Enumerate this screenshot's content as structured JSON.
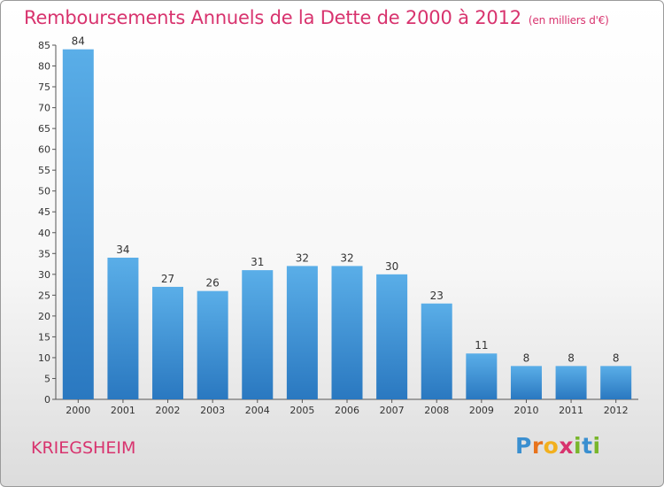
{
  "chart_data": {
    "type": "bar",
    "title": "Remboursements Annuels de la Dette de 2000 à 2012",
    "subtitle": "(en milliers d'€)",
    "categories": [
      "2000",
      "2001",
      "2002",
      "2003",
      "2004",
      "2005",
      "2006",
      "2007",
      "2008",
      "2009",
      "2010",
      "2011",
      "2012"
    ],
    "values": [
      84,
      34,
      27,
      26,
      31,
      32,
      32,
      30,
      23,
      11,
      8,
      8,
      8
    ],
    "ylim": [
      0,
      85
    ],
    "yticks": [
      0,
      5,
      10,
      15,
      20,
      25,
      30,
      35,
      40,
      45,
      50,
      55,
      60,
      65,
      70,
      75,
      80,
      85
    ],
    "xlabel": "",
    "ylabel": "",
    "grid": false,
    "bar_color_top": "#5aaee8",
    "bar_color_bottom": "#2a78c0"
  },
  "footer": {
    "town": "KRIEGSHEIM",
    "logo_letters": [
      "P",
      "r",
      "o",
      "x",
      "i",
      "t",
      "i"
    ],
    "logo_colors": [
      "#3a8fd0",
      "#e8731c",
      "#f2b01e",
      "#d8336e",
      "#79b62b",
      "#3a8fd0",
      "#79b62b"
    ]
  }
}
